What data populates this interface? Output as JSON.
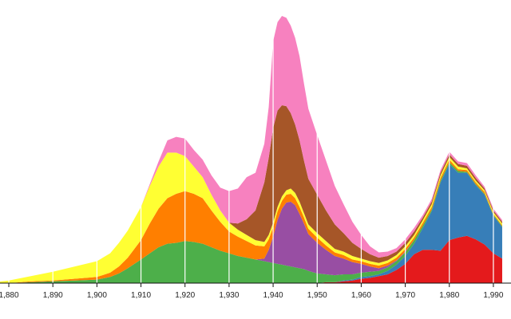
{
  "chart_data": {
    "type": "area",
    "stacked": true,
    "grid": true,
    "x": [
      1875,
      1880,
      1885,
      1890,
      1895,
      1900,
      1903,
      1905,
      1907,
      1910,
      1912,
      1914,
      1916,
      1918,
      1920,
      1922,
      1924,
      1926,
      1928,
      1930,
      1932,
      1934,
      1936,
      1938,
      1939,
      1940,
      1941,
      1942,
      1943,
      1944,
      1945,
      1946,
      1947,
      1948,
      1950,
      1952,
      1954,
      1956,
      1958,
      1960,
      1962,
      1964,
      1966,
      1968,
      1970,
      1972,
      1974,
      1976,
      1978,
      1980,
      1982,
      1984,
      1986,
      1988,
      1990,
      1992
    ],
    "xlim": [
      1878,
      1994
    ],
    "ylim": [
      0,
      305
    ],
    "x_ticks": [
      "1,880",
      "1,890",
      "1,900",
      "1,910",
      "1,920",
      "1,930",
      "1,940",
      "1,950",
      "1,960",
      "1,970",
      "1,980",
      "1,990"
    ],
    "series": [
      {
        "color": "#e41a1c",
        "values": [
          0,
          0,
          0,
          0,
          0,
          0,
          0,
          0,
          0,
          0,
          0,
          0,
          0,
          0,
          0,
          0,
          0,
          0,
          0,
          0,
          0,
          0,
          0,
          0,
          0,
          0,
          0,
          0,
          0,
          0,
          0,
          0,
          0,
          0,
          0,
          1,
          1,
          2,
          3,
          5,
          6,
          8,
          10,
          15,
          22,
          33,
          38,
          38,
          37,
          49,
          52,
          54,
          50,
          44,
          34,
          28
        ]
      },
      {
        "color": "#377eb8",
        "values": [
          0,
          0,
          0,
          0,
          0,
          0,
          0,
          0,
          0,
          0,
          0,
          0,
          0,
          0,
          0,
          0,
          0,
          0,
          0,
          0,
          0,
          0,
          0,
          0,
          0,
          0,
          0,
          0,
          0,
          0,
          0,
          0,
          0,
          0,
          0,
          0,
          0,
          1,
          1,
          2,
          2,
          2,
          4,
          6,
          9,
          12,
          25,
          44,
          78,
          87,
          74,
          72,
          62,
          57,
          43,
          36
        ]
      },
      {
        "color": "#4daf4a",
        "values": [
          0,
          0,
          1,
          2,
          3,
          4,
          7,
          11,
          17,
          27,
          34,
          41,
          45,
          46,
          48,
          47,
          45,
          41,
          37,
          34,
          31,
          29,
          27,
          25,
          24,
          23,
          22,
          21,
          20,
          19,
          18,
          17,
          16,
          14,
          11,
          9,
          8,
          7,
          6,
          5,
          5,
          4,
          4,
          4,
          4,
          4,
          3,
          2,
          2,
          2,
          2,
          1,
          1,
          1,
          1,
          1
        ]
      },
      {
        "color": "#984ea3",
        "values": [
          0,
          0,
          0,
          0,
          0,
          0,
          0,
          0,
          0,
          0,
          0,
          0,
          0,
          0,
          0,
          0,
          0,
          0,
          0,
          0,
          0,
          0,
          0,
          3,
          14,
          30,
          50,
          64,
          72,
          74,
          71,
          62,
          52,
          42,
          35,
          28,
          22,
          18,
          14,
          10,
          6,
          3,
          2,
          1,
          1,
          0,
          0,
          0,
          0,
          0,
          0,
          0,
          0,
          0,
          0,
          0
        ]
      },
      {
        "color": "#ff7f00",
        "values": [
          0,
          0,
          1,
          1,
          2,
          3,
          5,
          8,
          12,
          22,
          34,
          44,
          52,
          56,
          57,
          55,
          52,
          42,
          33,
          25,
          22,
          19,
          16,
          14,
          12,
          11,
          10,
          9,
          9,
          9,
          8,
          8,
          7,
          6,
          6,
          5,
          4,
          4,
          3,
          3,
          3,
          3,
          3,
          3,
          3,
          3,
          3,
          3,
          3,
          3,
          2,
          2,
          2,
          2,
          1,
          1
        ]
      },
      {
        "color": "#ffff33",
        "values": [
          0,
          3,
          6,
          10,
          14,
          18,
          22,
          27,
          31,
          38,
          43,
          48,
          52,
          47,
          40,
          31,
          24,
          18,
          13,
          10,
          8,
          7,
          6,
          5,
          5,
          5,
          5,
          5,
          5,
          6,
          6,
          6,
          5,
          5,
          5,
          5,
          4,
          4,
          4,
          3,
          3,
          3,
          3,
          3,
          3,
          3,
          3,
          3,
          3,
          3,
          3,
          2,
          2,
          2,
          2,
          2
        ]
      },
      {
        "color": "#a65628",
        "values": [
          0,
          0,
          0,
          0,
          0,
          0,
          0,
          0,
          0,
          0,
          0,
          0,
          0,
          0,
          0,
          0,
          0,
          0,
          0,
          0,
          7,
          18,
          34,
          68,
          88,
          108,
          110,
          104,
          96,
          86,
          78,
          70,
          60,
          52,
          44,
          35,
          28,
          21,
          15,
          11,
          8,
          6,
          5,
          4,
          4,
          4,
          3,
          3,
          3,
          3,
          3,
          3,
          3,
          2,
          2,
          2
        ]
      },
      {
        "color": "#f781bf",
        "values": [
          0,
          0,
          0,
          0,
          0,
          0,
          0,
          0,
          0,
          0,
          2,
          6,
          14,
          18,
          20,
          19,
          20,
          22,
          26,
          36,
          40,
          48,
          43,
          44,
          58,
          99,
          101,
          102,
          101,
          100,
          99,
          96,
          88,
          80,
          68,
          57,
          44,
          33,
          24,
          16,
          9,
          6,
          5,
          4,
          4,
          4,
          3,
          3,
          3,
          3,
          3,
          3,
          3,
          2,
          2,
          2
        ]
      }
    ]
  }
}
